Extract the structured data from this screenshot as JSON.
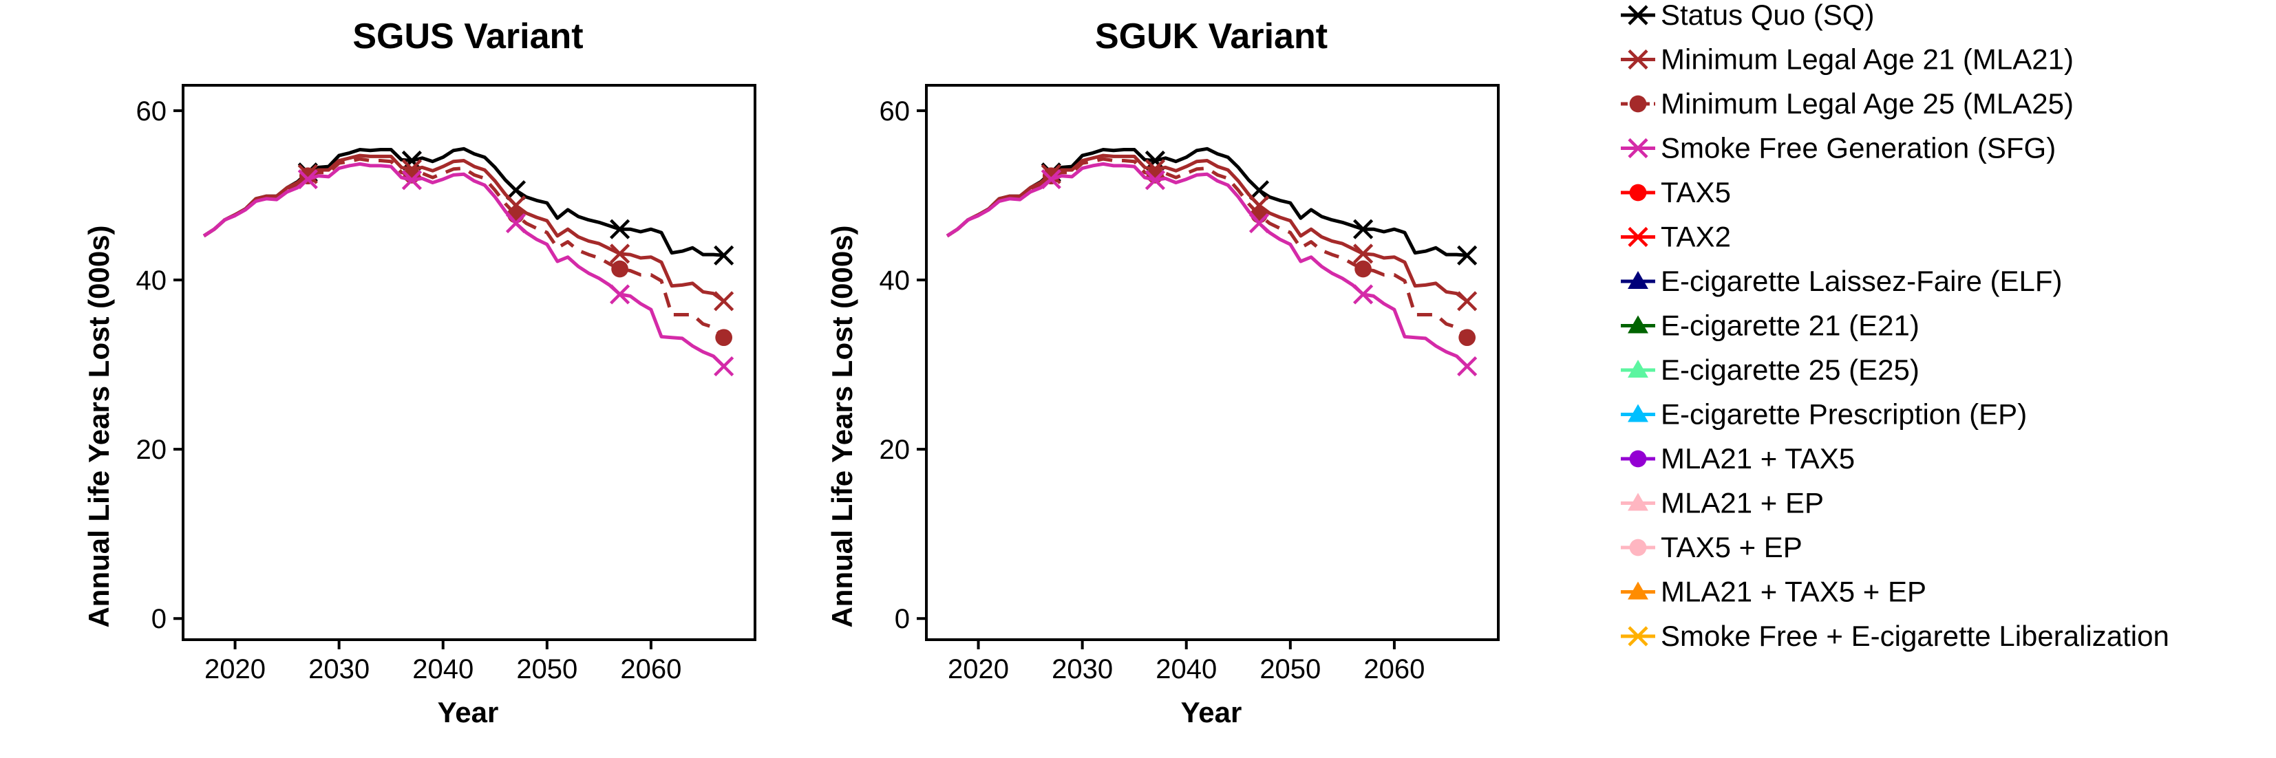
{
  "panels": [
    {
      "title": "SGUS Variant",
      "xlabel": "Year",
      "ylabel": "Annual Life Years Lost (000s)"
    },
    {
      "title": "SGUK Variant",
      "xlabel": "Year",
      "ylabel": "Annual Life Years Lost (000s)"
    }
  ],
  "legend": [
    {
      "label": "Status Quo (SQ)",
      "color": "#000000",
      "marker": "x",
      "dashed": false
    },
    {
      "label": "Minimum Legal Age 21 (MLA21)",
      "color": "#a52a2a",
      "marker": "x",
      "dashed": false
    },
    {
      "label": "Minimum Legal Age 25 (MLA25)",
      "color": "#a52a2a",
      "marker": "circle",
      "dashed": true
    },
    {
      "label": "Smoke Free Generation (SFG)",
      "color": "#d42aa8",
      "marker": "x",
      "dashed": false
    },
    {
      "label": "TAX5",
      "color": "#ff0000",
      "marker": "circle",
      "dashed": false
    },
    {
      "label": "TAX2",
      "color": "#ff0000",
      "marker": "x",
      "dashed": false
    },
    {
      "label": "E-cigarette Laissez-Faire (ELF)",
      "color": "#00007a",
      "marker": "triangle",
      "dashed": false
    },
    {
      "label": "E-cigarette 21 (E21)",
      "color": "#006400",
      "marker": "triangle",
      "dashed": false
    },
    {
      "label": "E-cigarette 25 (E25)",
      "color": "#5cf5a0",
      "marker": "triangle",
      "dashed": false
    },
    {
      "label": "E-cigarette Prescription (EP)",
      "color": "#00bfff",
      "marker": "triangle",
      "dashed": false
    },
    {
      "label": "MLA21 + TAX5",
      "color": "#9400d3",
      "marker": "circle",
      "dashed": false
    },
    {
      "label": "MLA21 + EP",
      "color": "#ffb6c1",
      "marker": "triangle",
      "dashed": false
    },
    {
      "label": "TAX5 + EP",
      "color": "#ffb6c1",
      "marker": "circle",
      "dashed": false
    },
    {
      "label": "MLA21 + TAX5 + EP",
      "color": "#ff8c00",
      "marker": "triangle",
      "dashed": false
    },
    {
      "label": "Smoke Free + E-cigarette Liberalization",
      "color": "#ffb000",
      "marker": "x",
      "dashed": false
    }
  ],
  "chart_data": [
    {
      "type": "line",
      "title": "SGUS Variant",
      "xlabel": "Year",
      "ylabel": "Annual Life Years Lost (000s)",
      "xlim": [
        2015,
        2070
      ],
      "ylim": [
        -2.5,
        63
      ],
      "xticks": [
        2020,
        2030,
        2040,
        2050,
        2060
      ],
      "yticks": [
        0,
        20,
        40,
        60
      ],
      "x": [
        2017,
        2018,
        2019,
        2020,
        2021,
        2022,
        2023,
        2024,
        2025,
        2026,
        2027,
        2028,
        2029,
        2030,
        2031,
        2032,
        2033,
        2034,
        2035,
        2036,
        2037,
        2038,
        2039,
        2040,
        2041,
        2042,
        2043,
        2044,
        2045,
        2046,
        2047,
        2048,
        2049,
        2050,
        2051,
        2052,
        2053,
        2054,
        2055,
        2056,
        2057,
        2058,
        2059,
        2060,
        2061,
        2062,
        2063,
        2064,
        2065,
        2066,
        2067
      ],
      "series": [
        {
          "name": "Status Quo (SQ)",
          "color": "#000000",
          "dashed": false,
          "marker": "x",
          "marker_x": [
            2027,
            2037,
            2047,
            2057,
            2067
          ],
          "values": [
            45.2,
            46,
            47.1,
            47.7,
            48.4,
            49.6,
            49.9,
            49.9,
            50.9,
            51.6,
            52.7,
            53.3,
            53.4,
            54.7,
            55,
            55.4,
            55.3,
            55.4,
            55.4,
            54.2,
            54.1,
            54.4,
            54,
            54.5,
            55.3,
            55.5,
            54.9,
            54.5,
            53.3,
            51.8,
            50.6,
            49.8,
            49.4,
            49.1,
            47.3,
            48.3,
            47.5,
            47.1,
            46.8,
            46.4,
            46,
            46,
            45.7,
            46,
            45.6,
            43.2,
            43.4,
            43.8,
            43,
            43,
            42.9
          ]
        },
        {
          "name": "Minimum Legal Age 21 (MLA21)",
          "color": "#a52a2a",
          "dashed": false,
          "marker": "x",
          "marker_x": [
            2027,
            2037,
            2047,
            2057,
            2067
          ],
          "values": [
            45.2,
            46,
            47.1,
            47.7,
            48.4,
            49.6,
            49.9,
            49.9,
            50.9,
            51.5,
            52.5,
            53,
            53,
            54.1,
            54.4,
            54.7,
            54.6,
            54.6,
            54.6,
            53.3,
            53.1,
            53.3,
            52.9,
            53.4,
            54,
            54.1,
            53.4,
            53,
            51.7,
            50.1,
            48.8,
            47.9,
            47.4,
            47,
            45.2,
            46,
            45.1,
            44.6,
            44.3,
            43.7,
            43.1,
            43,
            42.6,
            42.7,
            42.1,
            39.3,
            39.4,
            39.6,
            38.6,
            38.4,
            37.5
          ]
        },
        {
          "name": "Minimum Legal Age 25 (MLA25)",
          "color": "#a52a2a",
          "dashed": true,
          "marker": "circle",
          "marker_x": [
            2027,
            2037,
            2047,
            2057,
            2067
          ],
          "values": [
            45.2,
            46,
            47.1,
            47.7,
            48.4,
            49.5,
            49.8,
            49.8,
            50.7,
            51.3,
            52.3,
            52.7,
            52.7,
            53.8,
            54,
            54.3,
            54.1,
            54.1,
            54,
            52.7,
            52.4,
            52.6,
            52.1,
            52.6,
            53.1,
            53.2,
            52.4,
            52,
            50.6,
            49,
            47.7,
            46.7,
            46.1,
            45.6,
            43.8,
            44.5,
            43.5,
            43,
            42.6,
            41.9,
            41.3,
            41.1,
            40.6,
            40.6,
            39.9,
            35.9,
            35.9,
            35.9,
            34.8,
            34.4,
            33.2
          ]
        },
        {
          "name": "Smoke Free Generation (SFG)",
          "color": "#d42aa8",
          "dashed": false,
          "marker": "x",
          "marker_x": [
            2027,
            2037,
            2047,
            2057,
            2067
          ],
          "values": [
            45.2,
            46,
            47.1,
            47.6,
            48.3,
            49.3,
            49.6,
            49.5,
            50.4,
            50.9,
            51.9,
            52.3,
            52.2,
            53.2,
            53.5,
            53.7,
            53.5,
            53.5,
            53.4,
            52.1,
            51.8,
            52,
            51.5,
            51.9,
            52.4,
            52.5,
            51.7,
            51.2,
            49.8,
            48.1,
            46.7,
            45.6,
            44.8,
            44.2,
            42.2,
            42.7,
            41.6,
            40.8,
            40.2,
            39.4,
            38.3,
            38.1,
            37.2,
            36.5,
            33.3,
            33.2,
            33.1,
            32.2,
            31.5,
            31,
            29.8
          ]
        }
      ]
    },
    {
      "type": "line",
      "title": "SGUK Variant",
      "xlabel": "Year",
      "ylabel": "Annual Life Years Lost (000s)",
      "xlim": [
        2015,
        2070
      ],
      "ylim": [
        -2.5,
        63
      ],
      "xticks": [
        2020,
        2030,
        2040,
        2050,
        2060
      ],
      "yticks": [
        0,
        20,
        40,
        60
      ],
      "x": [
        2017,
        2018,
        2019,
        2020,
        2021,
        2022,
        2023,
        2024,
        2025,
        2026,
        2027,
        2028,
        2029,
        2030,
        2031,
        2032,
        2033,
        2034,
        2035,
        2036,
        2037,
        2038,
        2039,
        2040,
        2041,
        2042,
        2043,
        2044,
        2045,
        2046,
        2047,
        2048,
        2049,
        2050,
        2051,
        2052,
        2053,
        2054,
        2055,
        2056,
        2057,
        2058,
        2059,
        2060,
        2061,
        2062,
        2063,
        2064,
        2065,
        2066,
        2067
      ],
      "series": [
        {
          "name": "Status Quo (SQ)",
          "color": "#000000",
          "dashed": false,
          "marker": "x",
          "marker_x": [
            2027,
            2037,
            2047,
            2057,
            2067
          ],
          "values": [
            45.2,
            46,
            47.1,
            47.7,
            48.4,
            49.6,
            49.9,
            49.9,
            50.9,
            51.6,
            52.7,
            53.3,
            53.4,
            54.7,
            55,
            55.4,
            55.3,
            55.4,
            55.4,
            54.2,
            54.1,
            54.4,
            54,
            54.5,
            55.3,
            55.5,
            54.9,
            54.5,
            53.3,
            51.8,
            50.6,
            49.8,
            49.4,
            49.1,
            47.3,
            48.3,
            47.5,
            47.1,
            46.8,
            46.4,
            46,
            46,
            45.7,
            46,
            45.6,
            43.2,
            43.4,
            43.8,
            43,
            43,
            42.9
          ]
        },
        {
          "name": "Minimum Legal Age 21 (MLA21)",
          "color": "#a52a2a",
          "dashed": false,
          "marker": "x",
          "marker_x": [
            2027,
            2037,
            2047,
            2057,
            2067
          ],
          "values": [
            45.2,
            46,
            47.1,
            47.7,
            48.4,
            49.6,
            49.9,
            49.9,
            50.9,
            51.5,
            52.5,
            53,
            53,
            54.1,
            54.4,
            54.7,
            54.6,
            54.6,
            54.6,
            53.3,
            53.1,
            53.3,
            52.9,
            53.4,
            54,
            54.1,
            53.4,
            53,
            51.7,
            50.1,
            48.8,
            47.9,
            47.4,
            47,
            45.2,
            46,
            45.1,
            44.6,
            44.3,
            43.7,
            43.1,
            43,
            42.6,
            42.7,
            42.1,
            39.3,
            39.4,
            39.6,
            38.6,
            38.4,
            37.5
          ]
        },
        {
          "name": "Minimum Legal Age 25 (MLA25)",
          "color": "#a52a2a",
          "dashed": true,
          "marker": "circle",
          "marker_x": [
            2027,
            2037,
            2047,
            2057,
            2067
          ],
          "values": [
            45.2,
            46,
            47.1,
            47.7,
            48.4,
            49.5,
            49.8,
            49.8,
            50.7,
            51.3,
            52.3,
            52.7,
            52.7,
            53.8,
            54,
            54.3,
            54.1,
            54.1,
            54,
            52.7,
            52.4,
            52.6,
            52.1,
            52.6,
            53.1,
            53.2,
            52.4,
            52,
            50.6,
            49,
            47.7,
            46.7,
            46.1,
            45.6,
            43.8,
            44.5,
            43.5,
            43,
            42.6,
            41.9,
            41.3,
            41.1,
            40.6,
            40.6,
            39.9,
            35.9,
            35.9,
            35.9,
            34.8,
            34.4,
            33.2
          ]
        },
        {
          "name": "Smoke Free Generation (SFG)",
          "color": "#d42aa8",
          "dashed": false,
          "marker": "x",
          "marker_x": [
            2027,
            2037,
            2047,
            2057,
            2067
          ],
          "values": [
            45.2,
            46,
            47.1,
            47.6,
            48.3,
            49.3,
            49.6,
            49.5,
            50.4,
            50.9,
            51.9,
            52.3,
            52.2,
            53.2,
            53.5,
            53.7,
            53.5,
            53.5,
            53.4,
            52.1,
            51.8,
            52,
            51.5,
            51.9,
            52.4,
            52.5,
            51.7,
            51.2,
            49.8,
            48.1,
            46.7,
            45.6,
            44.8,
            44.2,
            42.2,
            42.7,
            41.6,
            40.8,
            40.2,
            39.4,
            38.3,
            38.1,
            37.2,
            36.5,
            33.3,
            33.2,
            33.1,
            32.2,
            31.5,
            31,
            29.8
          ]
        }
      ]
    }
  ]
}
